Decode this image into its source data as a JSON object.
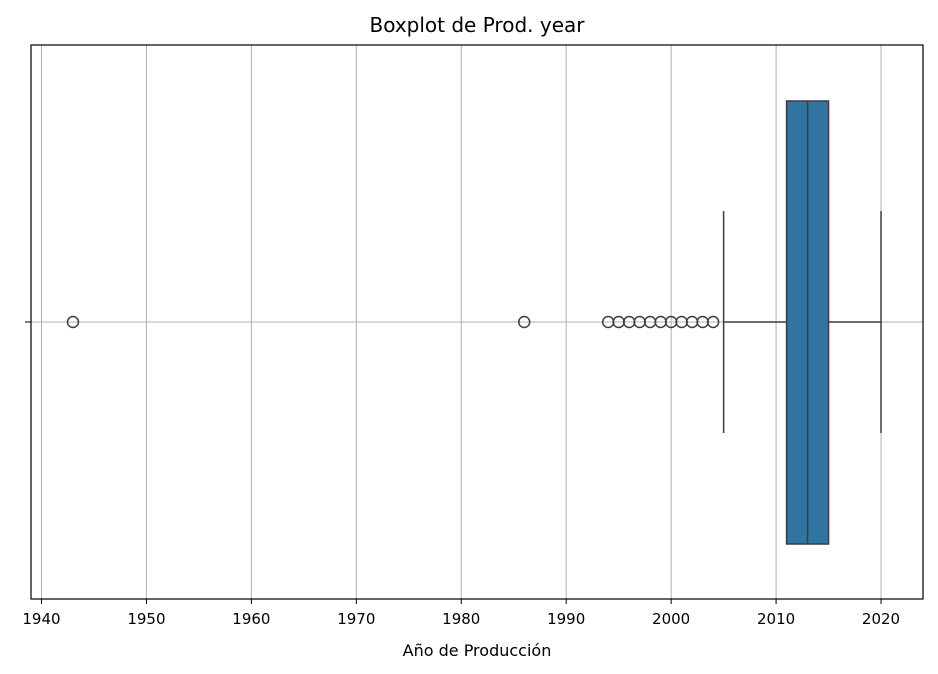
{
  "chart_data": {
    "type": "boxplot",
    "title": "Boxplot de Prod. year",
    "xlabel": "Año de Producción",
    "ylabel": "",
    "orientation": "horizontal",
    "xlim": [
      1939,
      2024
    ],
    "xticks": [
      1940,
      1950,
      1960,
      1970,
      1980,
      1990,
      2000,
      2010,
      2020
    ],
    "xtick_labels": [
      "1940",
      "1950",
      "1960",
      "1970",
      "1980",
      "1990",
      "2000",
      "2010",
      "2020"
    ],
    "grid": true,
    "box": {
      "q1": 2011,
      "median": 2013,
      "q3": 2015,
      "whisker_low": 2005,
      "whisker_high": 2020,
      "fill_color": "#3274a1",
      "edge_color": "#3d3d3d"
    },
    "outliers": [
      1943,
      1986,
      1994,
      1995,
      1996,
      1997,
      1998,
      1999,
      2000,
      2001,
      2002,
      2003,
      2004
    ]
  }
}
